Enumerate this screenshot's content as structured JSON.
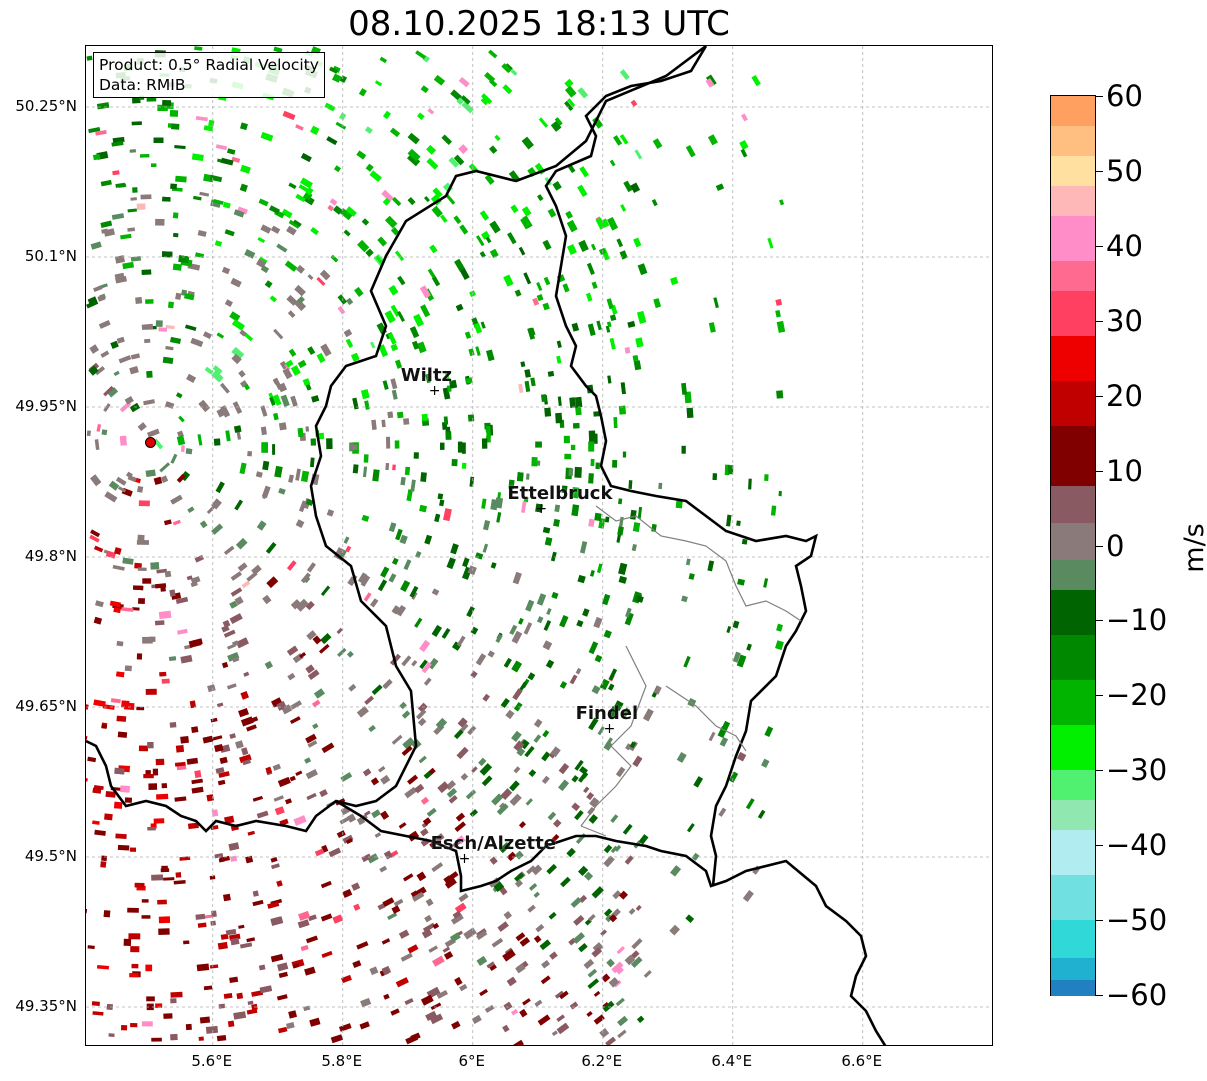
{
  "title": "08.10.2025 18:13 UTC",
  "info_box": {
    "product": "Product: 0.5° Radial Velocity",
    "data_source": "Data: RMIB"
  },
  "axes": {
    "lat_labels": [
      "50.25°N",
      "50.1°N",
      "49.95°N",
      "49.8°N",
      "49.65°N",
      "49.5°N",
      "49.35°N"
    ],
    "lat_values": [
      50.25,
      50.1,
      49.95,
      49.8,
      49.65,
      49.5,
      49.35
    ],
    "lon_labels": [
      "5.6°E",
      "5.8°E",
      "6°E",
      "6.2°E",
      "6.4°E",
      "6.6°E"
    ],
    "lon_values": [
      5.6,
      5.8,
      6.0,
      6.2,
      6.4,
      6.6
    ],
    "grid": true
  },
  "cities": [
    {
      "name": "Wiltz",
      "lon": 5.94,
      "lat": 49.965
    },
    {
      "name": "Ettelbruck",
      "lon": 6.104,
      "lat": 49.847
    },
    {
      "name": "Findel",
      "lon": 6.209,
      "lat": 49.627
    },
    {
      "name": "Esch/Alzette",
      "lon": 5.986,
      "lat": 49.497
    }
  ],
  "radar_site": {
    "lon": 5.505,
    "lat": 49.914
  },
  "colorbar": {
    "unit": "m/s",
    "min": -60,
    "max": 60,
    "ticks": [
      "60",
      "50",
      "40",
      "30",
      "20",
      "10",
      "0",
      "−10",
      "−20",
      "−30",
      "−40",
      "−50",
      "−60"
    ],
    "tick_values": [
      60,
      50,
      40,
      30,
      20,
      10,
      0,
      -10,
      -20,
      -30,
      -40,
      -50,
      -60
    ],
    "bands": [
      {
        "from": 56,
        "to": 60,
        "color": "#ffa060"
      },
      {
        "from": 52,
        "to": 56,
        "color": "#ffbf80"
      },
      {
        "from": 48,
        "to": 52,
        "color": "#ffe0a0"
      },
      {
        "from": 44,
        "to": 48,
        "color": "#ffb8b8"
      },
      {
        "from": 38,
        "to": 44,
        "color": "#ff8ec8"
      },
      {
        "from": 34,
        "to": 38,
        "color": "#ff6a90"
      },
      {
        "from": 28,
        "to": 34,
        "color": "#ff4060"
      },
      {
        "from": 22,
        "to": 28,
        "color": "#ee0000"
      },
      {
        "from": 16,
        "to": 22,
        "color": "#c00000"
      },
      {
        "from": 8,
        "to": 16,
        "color": "#800000"
      },
      {
        "from": 3,
        "to": 8,
        "color": "#8a5a62"
      },
      {
        "from": -2,
        "to": 3,
        "color": "#8a7a7a"
      },
      {
        "from": -6,
        "to": -2,
        "color": "#5a8a60"
      },
      {
        "from": -12,
        "to": -6,
        "color": "#006400"
      },
      {
        "from": -18,
        "to": -12,
        "color": "#008800"
      },
      {
        "from": -24,
        "to": -18,
        "color": "#00b400"
      },
      {
        "from": -30,
        "to": -24,
        "color": "#00f000"
      },
      {
        "from": -34,
        "to": -30,
        "color": "#50f070"
      },
      {
        "from": -38,
        "to": -34,
        "color": "#90e8b0"
      },
      {
        "from": -44,
        "to": -38,
        "color": "#b0ecf0"
      },
      {
        "from": -50,
        "to": -44,
        "color": "#70e0e0"
      },
      {
        "from": -55,
        "to": -50,
        "color": "#30d8d8"
      },
      {
        "from": -58,
        "to": -55,
        "color": "#20b0d0"
      },
      {
        "from": -60,
        "to": -58,
        "color": "#2080c0"
      }
    ]
  },
  "colors": {
    "border": "#000000",
    "province_lines": "#808080",
    "grid": "#b0b0b0"
  }
}
